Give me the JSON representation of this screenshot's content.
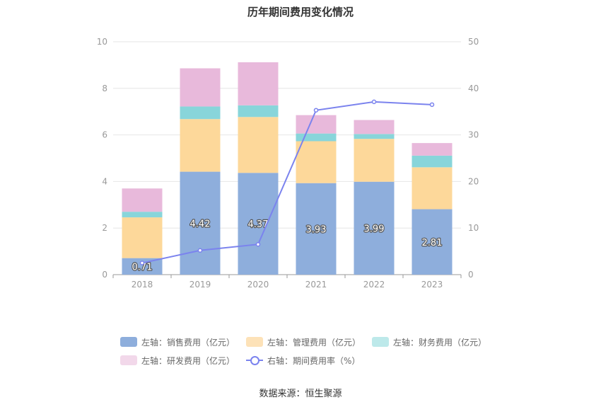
{
  "title": "历年期间费用变化情况",
  "source": "数据来源：恒生聚源",
  "colors": {
    "sales": "#8eaedc",
    "admin": "#fdd89a",
    "finance": "#88d5da",
    "rd": "#e8b9db",
    "rate": "#7b83ee"
  },
  "legend": [
    {
      "label": "左轴：销售费用（亿元）",
      "color": "#8eaedc",
      "kind": "bar"
    },
    {
      "label": "左轴：管理费用（亿元）",
      "color": "#fde2b8",
      "kind": "bar"
    },
    {
      "label": "左轴：财务费用（亿元）",
      "color": "#bde9ea",
      "kind": "bar"
    },
    {
      "label": "左轴：研发费用（亿元）",
      "color": "#f2d8ea",
      "kind": "bar"
    },
    {
      "label": "右轴：期间费用率（%）",
      "color": "#7b83ee",
      "kind": "line"
    }
  ],
  "chart_data": {
    "type": "bar",
    "stacked": true,
    "categories": [
      "2018",
      "2019",
      "2020",
      "2021",
      "2022",
      "2023"
    ],
    "series": [
      {
        "name": "左轴：销售费用（亿元）",
        "axis": "left",
        "values": [
          0.71,
          4.42,
          4.37,
          3.93,
          3.99,
          2.81
        ],
        "labels": [
          "0.71",
          "4.42",
          "4.37",
          "3.93",
          "3.99",
          "2.81"
        ]
      },
      {
        "name": "左轴：管理费用（亿元）",
        "axis": "left",
        "values": [
          1.75,
          2.26,
          2.4,
          1.8,
          1.84,
          1.8
        ]
      },
      {
        "name": "左轴：财务费用（亿元）",
        "axis": "left",
        "values": [
          0.24,
          0.54,
          0.5,
          0.33,
          0.21,
          0.5
        ]
      },
      {
        "name": "左轴：研发费用（亿元）",
        "axis": "left",
        "values": [
          1.0,
          1.64,
          1.85,
          0.79,
          0.6,
          0.54
        ]
      },
      {
        "name": "右轴：期间费用率（%）",
        "axis": "right",
        "type": "line",
        "values": [
          2.5,
          5.2,
          6.5,
          35.3,
          37.1,
          36.5
        ]
      }
    ],
    "left_axis": {
      "min": 0,
      "max": 10,
      "ticks": [
        "0",
        "2",
        "4",
        "6",
        "8",
        "10"
      ]
    },
    "right_axis": {
      "min": 0,
      "max": 50,
      "ticks": [
        "0",
        "10",
        "20",
        "30",
        "40",
        "50"
      ]
    },
    "grid": true,
    "legend_position": "bottom"
  }
}
